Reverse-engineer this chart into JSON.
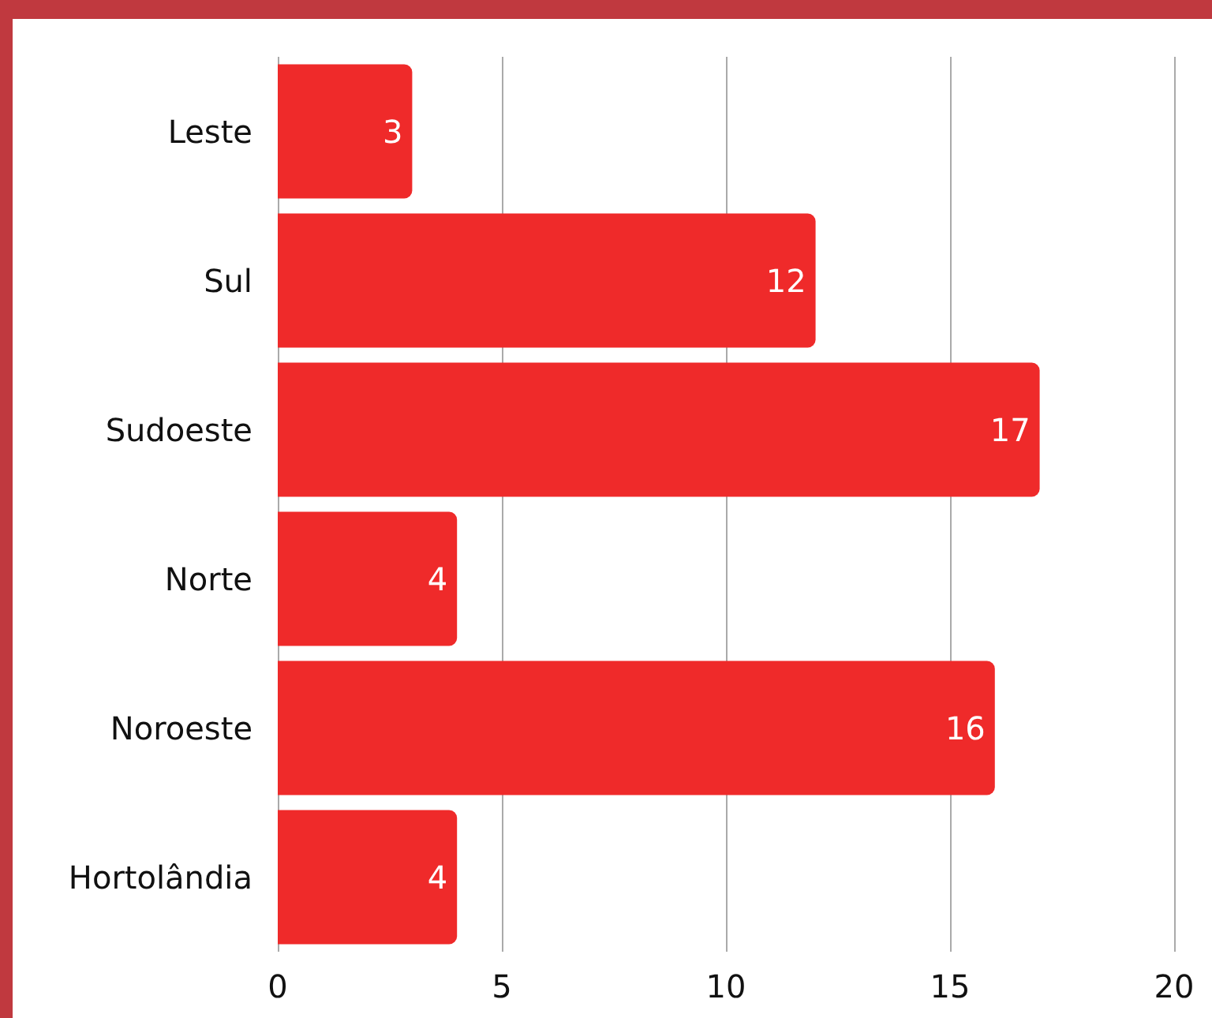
{
  "chart_data": {
    "type": "bar",
    "orientation": "horizontal",
    "categories": [
      "Leste",
      "Sul",
      "Sudoeste",
      "Norte",
      "Noroeste",
      "Hortolândia"
    ],
    "values": [
      3,
      12,
      17,
      4,
      16,
      4
    ],
    "color": "#ef2a2a",
    "xlim": [
      0,
      20
    ],
    "xticks": [
      0,
      5,
      10,
      15,
      20
    ],
    "grid": "x",
    "data_labels": true
  }
}
